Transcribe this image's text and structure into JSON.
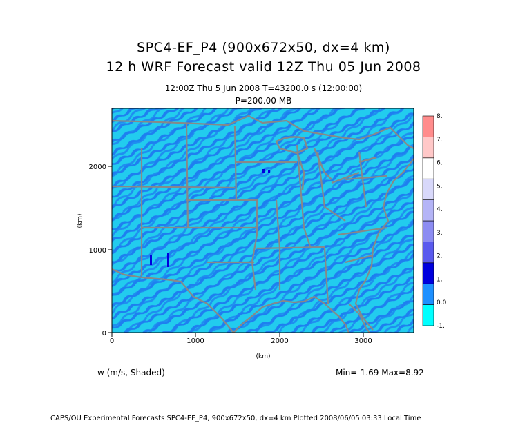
{
  "title_line1": "SPC4-EF_P4 (900x672x50, dx=4 km)",
  "title_line2": "12 h WRF Forecast valid 12Z Thu 05 Jun 2008",
  "valid_time": "12:00Z Thu   5 Jun 2008     T=43200.0 s (12:00:00)",
  "pressure_level": "P=200.00 MB",
  "field_label": "w (m/s, Shaded)",
  "min_max": "Min=-1.69  Max=8.92",
  "footer": "CAPS/OU Experimental Forecasts  SPC4-EF_P4, 900x672x50, dx=4 km  Plotted 2008/06/05 03:33 Local Time",
  "x_axis": {
    "label": "(km)",
    "ticks": [
      "0",
      "1000",
      "2000",
      "3000"
    ],
    "range": [
      0,
      3600
    ]
  },
  "y_axis": {
    "label": "(km)",
    "ticks": [
      "0",
      "1000",
      "2000"
    ],
    "range": [
      0,
      2688
    ]
  },
  "colorbar": {
    "levels": [
      "-1.",
      "0.0",
      "1.",
      "2.",
      "3.",
      "4.",
      "5.",
      "6.",
      "7.",
      "8."
    ],
    "colors": [
      "#00ffff",
      "#1e90ff",
      "#0000dd",
      "#5a5aee",
      "#8c8cf2",
      "#b4b4f6",
      "#d8d8fa",
      "#ffffff",
      "#ffc8c8",
      "#ff8c8c"
    ]
  },
  "colors": {
    "background_field": "#22ccee",
    "field_blue": "#1e7ff0",
    "map_lines": "#888888"
  }
}
